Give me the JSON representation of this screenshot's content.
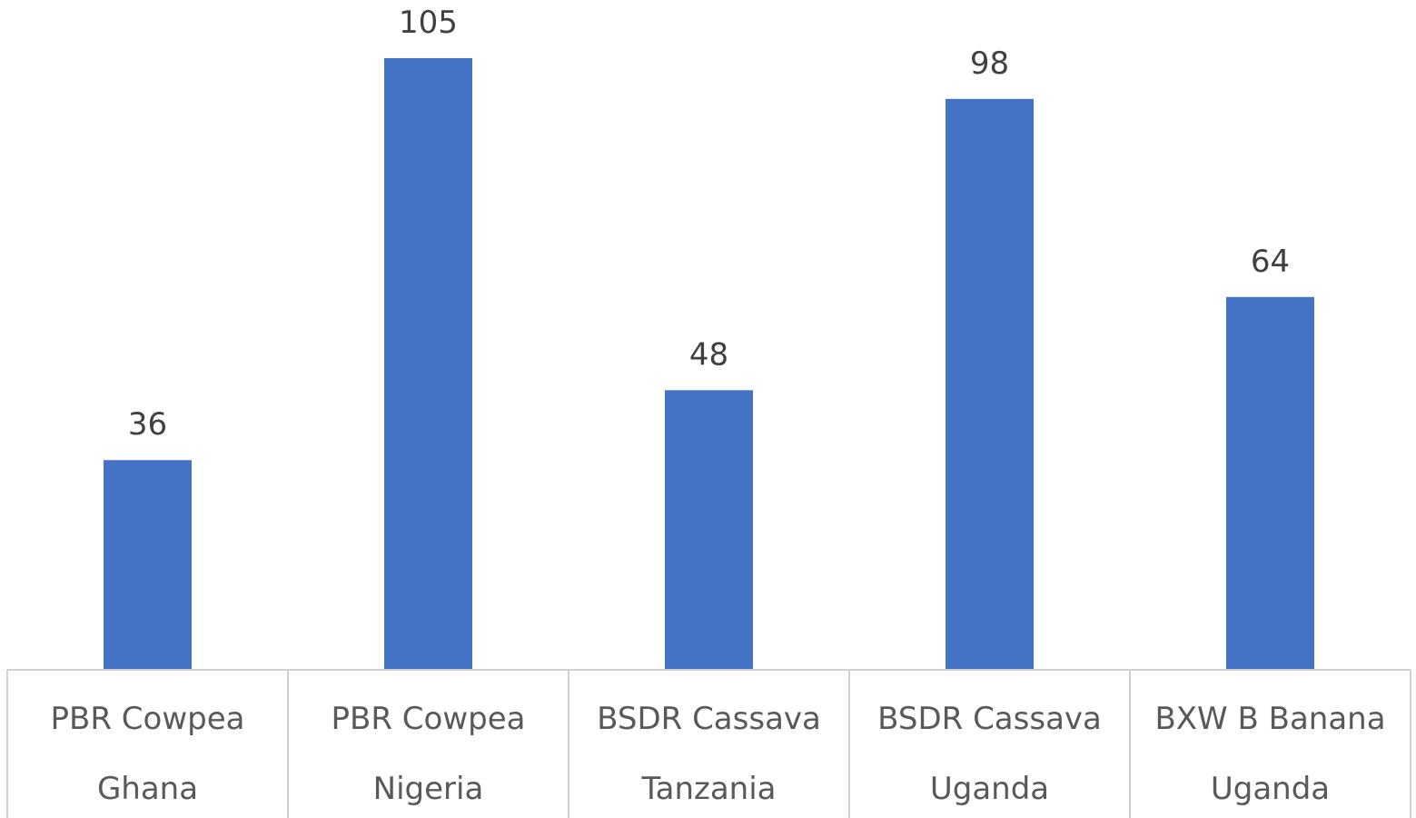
{
  "chart_data": {
    "type": "bar",
    "title": "",
    "xlabel": "",
    "ylabel": "",
    "categories": [
      [
        "PBR Cowpea",
        "Ghana"
      ],
      [
        "PBR Cowpea",
        "Nigeria"
      ],
      [
        "BSDR Cassava",
        "Tanzania"
      ],
      [
        "BSDR Cassava",
        "Uganda"
      ],
      [
        "BXW B Banana",
        "Uganda"
      ]
    ],
    "values": [
      36,
      105,
      48,
      98,
      64
    ],
    "data_labels": [
      "36",
      "105",
      "48",
      "98",
      "64"
    ],
    "ylim": [
      0,
      115
    ],
    "grid": false,
    "legend": "none",
    "bar_color": "#4472C4",
    "axis_color": "#D0D0D0"
  }
}
